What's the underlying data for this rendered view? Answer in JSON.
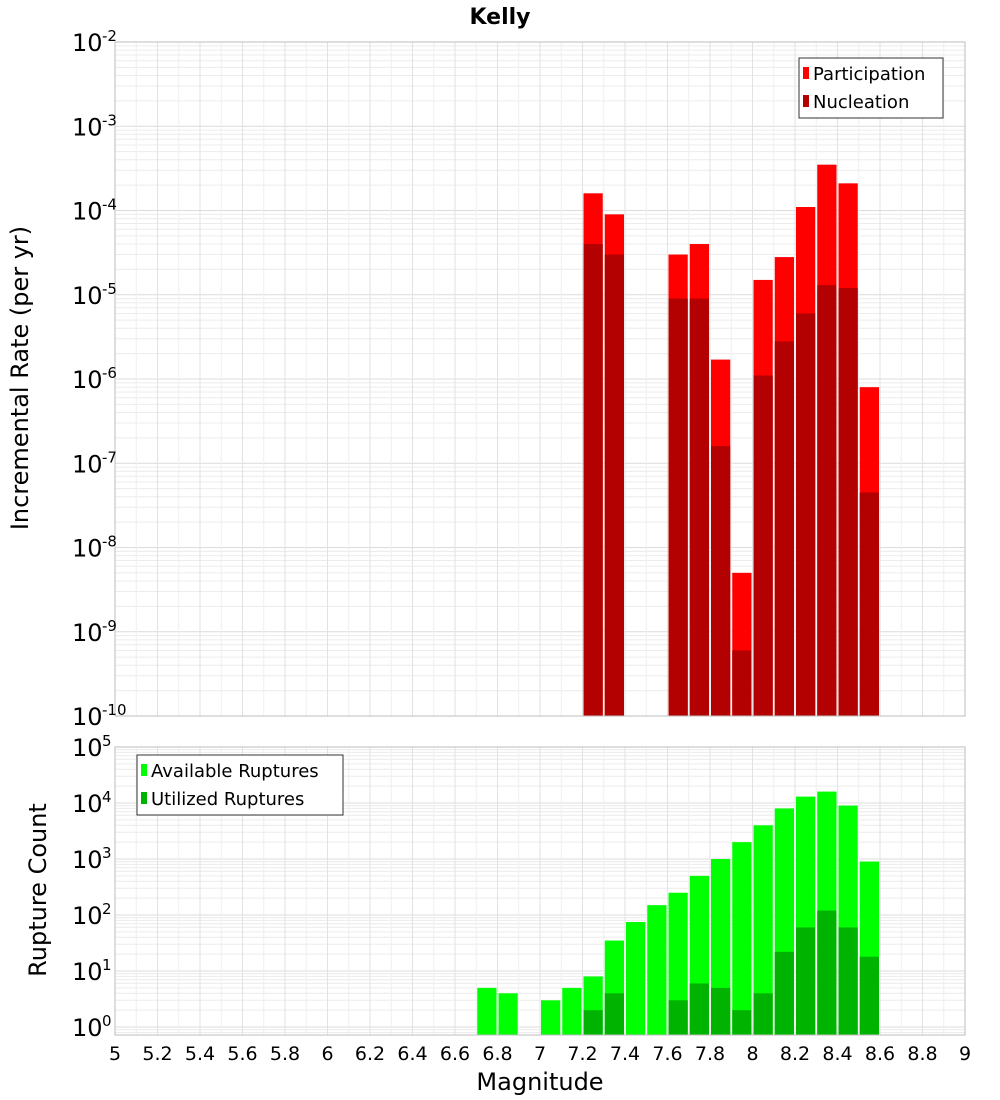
{
  "chart_data": [
    {
      "type": "bar",
      "title": "Kelly",
      "ylabel": "Incremental Rate (per yr)",
      "xlabel": "",
      "y_scale": "log",
      "ylim": [
        1e-10,
        0.01
      ],
      "xlim": [
        5,
        9
      ],
      "legend_position": "top-right",
      "grid": true,
      "y_ticks": [
        {
          "base": "10",
          "exp": "-10"
        },
        {
          "base": "10",
          "exp": "-9"
        },
        {
          "base": "10",
          "exp": "-8"
        },
        {
          "base": "10",
          "exp": "-7"
        },
        {
          "base": "10",
          "exp": "-6"
        },
        {
          "base": "10",
          "exp": "-5"
        },
        {
          "base": "10",
          "exp": "-4"
        },
        {
          "base": "10",
          "exp": "-3"
        },
        {
          "base": "10",
          "exp": "-2"
        }
      ],
      "x": [
        7.25,
        7.35,
        7.65,
        7.75,
        7.85,
        7.95,
        8.05,
        8.15,
        8.25,
        8.35,
        8.45,
        8.55
      ],
      "series": [
        {
          "name": "Participation",
          "color": "#ff0000",
          "values": [
            0.00016,
            9e-05,
            3e-05,
            4e-05,
            1.7e-06,
            5e-09,
            1.5e-05,
            2.8e-05,
            0.00011,
            0.00035,
            0.00021,
            8e-07
          ]
        },
        {
          "name": "Nucleation",
          "color": "#b30000",
          "values": [
            4e-05,
            3e-05,
            9e-06,
            9e-06,
            1.6e-07,
            6e-10,
            1.1e-06,
            2.8e-06,
            6e-06,
            1.3e-05,
            1.2e-05,
            4.5e-08
          ]
        }
      ]
    },
    {
      "type": "bar",
      "title": "",
      "ylabel": "Rupture Count",
      "xlabel": "Magnitude",
      "y_scale": "log",
      "ylim": [
        0.72,
        100000
      ],
      "xlim": [
        5,
        9
      ],
      "legend_position": "top-left",
      "grid": true,
      "y_ticks": [
        {
          "base": "10",
          "exp": "0"
        },
        {
          "base": "10",
          "exp": "1"
        },
        {
          "base": "10",
          "exp": "2"
        },
        {
          "base": "10",
          "exp": "3"
        },
        {
          "base": "10",
          "exp": "4"
        },
        {
          "base": "10",
          "exp": "5"
        }
      ],
      "x_ticks": [
        "5",
        "5.2",
        "5.4",
        "5.6",
        "5.8",
        "6",
        "6.2",
        "6.4",
        "6.6",
        "6.8",
        "7",
        "7.2",
        "7.4",
        "7.6",
        "7.8",
        "8",
        "8.2",
        "8.4",
        "8.6",
        "8.8",
        "9"
      ],
      "x": [
        6.75,
        6.85,
        7.05,
        7.15,
        7.25,
        7.35,
        7.45,
        7.55,
        7.65,
        7.75,
        7.85,
        7.95,
        8.05,
        8.15,
        8.25,
        8.35,
        8.45,
        8.55
      ],
      "series": [
        {
          "name": "Available Ruptures",
          "color": "#00ff00",
          "values": [
            5,
            4,
            3,
            5,
            8,
            35,
            75,
            150,
            250,
            500,
            1000,
            2000,
            4000,
            8000,
            13000,
            16000,
            9000,
            900
          ]
        },
        {
          "name": "Utilized Ruptures",
          "color": "#00b300",
          "values": [
            null,
            null,
            null,
            null,
            2,
            4,
            null,
            null,
            3,
            6,
            5,
            2,
            4,
            22,
            60,
            120,
            60,
            18
          ]
        }
      ]
    }
  ]
}
